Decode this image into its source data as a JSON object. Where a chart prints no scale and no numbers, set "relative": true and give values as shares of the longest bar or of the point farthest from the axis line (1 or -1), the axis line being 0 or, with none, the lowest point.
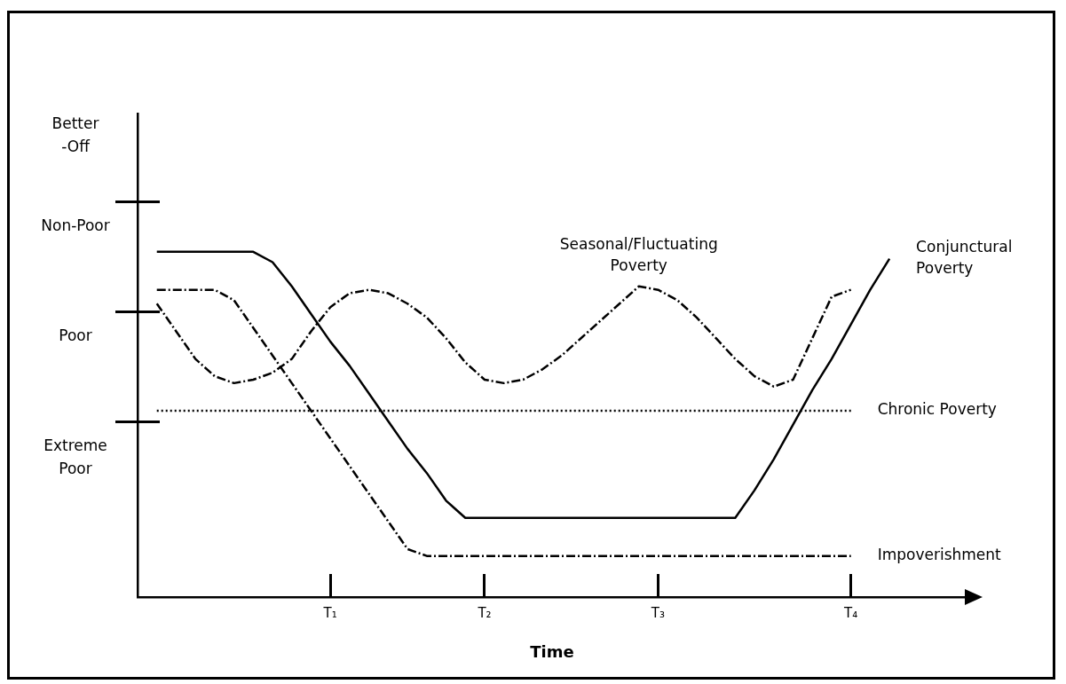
{
  "chart_data": {
    "type": "line",
    "xlabel": "Time",
    "relative": true,
    "categories": [
      null,
      null,
      null,
      null,
      null,
      null,
      null,
      null,
      null,
      null,
      "T₁",
      null,
      null,
      null,
      null,
      null,
      null,
      null,
      "T₂",
      null,
      null,
      null,
      null,
      null,
      null,
      null,
      null,
      "T₃",
      null,
      null,
      null,
      null,
      null,
      null,
      null,
      null,
      null,
      "T₄",
      null,
      null,
      null,
      null,
      null,
      null
    ],
    "annotations": [
      "Better\n-Off",
      "Non-Poor",
      "Poor",
      "Extreme\nPoor"
    ],
    "grid": false,
    "legend": false,
    "marker": "none",
    "series": [
      {
        "name": "Conjunctural\nPoverty",
        "color": "#000000",
        "line_style": "solid",
        "values": [
          null,
          1.0,
          1.0,
          1.0,
          1.0,
          1.0,
          1.0,
          0.97,
          0.9,
          0.82,
          0.74,
          0.67,
          0.59,
          0.51,
          0.43,
          0.36,
          0.28,
          0.23,
          0.23,
          0.23,
          0.23,
          0.23,
          0.23,
          0.23,
          0.23,
          0.23,
          0.23,
          0.23,
          0.23,
          0.23,
          0.23,
          0.23,
          0.31,
          0.4,
          0.5,
          0.6,
          0.69,
          0.79,
          0.89,
          0.98,
          null,
          null,
          null,
          null
        ]
      },
      {
        "name": "Impoverishment",
        "color": "#000000",
        "line_style": "dashed",
        "values": [
          null,
          0.89,
          0.89,
          0.89,
          0.89,
          0.86,
          0.78,
          0.7,
          0.62,
          0.54,
          0.46,
          0.38,
          0.3,
          0.22,
          0.14,
          0.12,
          0.12,
          0.12,
          0.12,
          0.12,
          0.12,
          0.12,
          0.12,
          0.12,
          0.12,
          0.12,
          0.12,
          0.12,
          0.12,
          0.12,
          0.12,
          0.12,
          0.12,
          0.12,
          0.12,
          0.12,
          0.12,
          0.12,
          null,
          null,
          null,
          null,
          null,
          null
        ]
      },
      {
        "name": "Chronic Poverty",
        "color": "#000000",
        "line_style": "dotted",
        "values": [
          null,
          0.54,
          0.54,
          0.54,
          0.54,
          0.54,
          0.54,
          0.54,
          0.54,
          0.54,
          0.54,
          0.54,
          0.54,
          0.54,
          0.54,
          0.54,
          0.54,
          0.54,
          0.54,
          0.54,
          0.54,
          0.54,
          0.54,
          0.54,
          0.54,
          0.54,
          0.54,
          0.54,
          0.54,
          0.54,
          0.54,
          0.54,
          0.54,
          0.54,
          0.54,
          0.54,
          0.54,
          0.54,
          null,
          null,
          null,
          null,
          null,
          null
        ]
      },
      {
        "name": "Seasonal/Fluctuating\nPoverty",
        "color": "#000000",
        "line_style": "dashed",
        "values": [
          null,
          0.85,
          0.77,
          0.69,
          0.64,
          0.62,
          0.63,
          0.65,
          0.69,
          0.77,
          0.84,
          0.88,
          0.89,
          0.88,
          0.85,
          0.81,
          0.75,
          0.68,
          0.63,
          0.62,
          0.63,
          0.66,
          0.7,
          0.75,
          0.8,
          0.85,
          0.9,
          0.89,
          0.86,
          0.81,
          0.75,
          0.69,
          0.64,
          0.61,
          0.63,
          0.75,
          0.87,
          0.89,
          null,
          null,
          null,
          null,
          null,
          null
        ]
      }
    ]
  }
}
